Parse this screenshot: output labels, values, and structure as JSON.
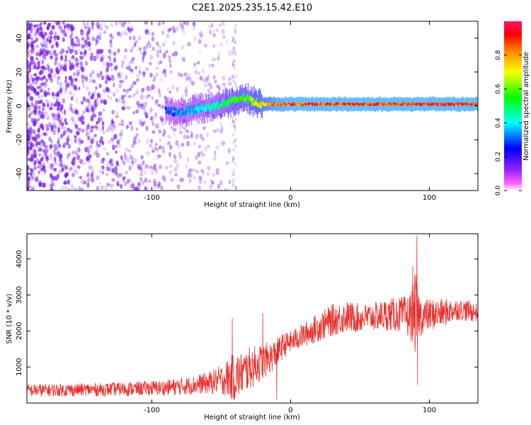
{
  "title": "C2E1.2025.235.15.42.E10",
  "colors": {
    "snr_line": "#e8312d",
    "spectro_low": "#7a1ee8",
    "colorbar": [
      "#ffffff",
      "#ff00ff",
      "#7700ff",
      "#0000ff",
      "#00ffff",
      "#00ff00",
      "#ffff00",
      "#ff7700",
      "#ff0000"
    ]
  },
  "chart_data": [
    {
      "type": "heatmap",
      "title": "C2E1.2025.235.15.42.E10",
      "xlabel": "Height of straight line (km)",
      "ylabel": "Frequency (Hz)",
      "xlim": [
        -190,
        135
      ],
      "ylim": [
        -50,
        50
      ],
      "xticks": [
        -100,
        0,
        100
      ],
      "yticks": [
        -40,
        -20,
        0,
        20,
        40
      ],
      "grid": false,
      "colorbar": {
        "label": "Normalized spectral amplitude",
        "range": [
          0,
          1
        ],
        "ticks": [
          0.0,
          0.2,
          0.4,
          0.6,
          0.8
        ],
        "tick_labels": [
          "0.0",
          "0.2",
          "0.4",
          "0.6",
          "0.8"
        ]
      },
      "ridge": {
        "x": [
          -90,
          -80,
          -70,
          -60,
          -50,
          -40,
          -35,
          -30,
          -25,
          -20,
          -10,
          0,
          20,
          40,
          60,
          80,
          100,
          120,
          135
        ],
        "freq": [
          -3,
          -4,
          -2,
          -1,
          1,
          3,
          5,
          4,
          2,
          1,
          1,
          1,
          1,
          1,
          1,
          1,
          1,
          1,
          1
        ],
        "amplitude": [
          0.3,
          0.35,
          0.4,
          0.45,
          0.5,
          0.6,
          0.62,
          0.6,
          0.7,
          0.8,
          0.9,
          0.95,
          0.95,
          0.95,
          0.95,
          0.95,
          0.95,
          0.95,
          0.95
        ]
      },
      "noise_region": {
        "x_range": [
          -190,
          -40
        ],
        "amplitude_range": [
          0.0,
          0.3
        ]
      }
    },
    {
      "type": "line",
      "xlabel": "Height of straight line (km)",
      "ylabel": "SNR (10 * v/v)",
      "xlim": [
        -190,
        135
      ],
      "ylim": [
        0,
        4700
      ],
      "xticks": [
        -100,
        0,
        100
      ],
      "yticks": [
        1000,
        2000,
        3000,
        4000
      ],
      "grid": false,
      "series": [
        {
          "x": [
            -190,
            -170,
            -150,
            -130,
            -110,
            -90,
            -75,
            -60,
            -50,
            -45,
            -40,
            -35,
            -30,
            -25,
            -20,
            -15,
            -10,
            -5,
            0,
            10,
            20,
            30,
            40,
            50,
            60,
            70,
            80,
            85,
            88,
            90,
            92,
            95,
            100,
            110,
            120,
            130,
            135
          ],
          "values": [
            350,
            360,
            370,
            380,
            400,
            430,
            480,
            550,
            650,
            700,
            720,
            820,
            950,
            1050,
            1150,
            1250,
            1400,
            1600,
            1700,
            1900,
            2100,
            2300,
            2400,
            2350,
            2400,
            2450,
            2450,
            2400,
            2450,
            2500,
            2450,
            2400,
            2450,
            2500,
            2600,
            2550,
            2500
          ],
          "spread": [
            180,
            180,
            180,
            190,
            200,
            220,
            250,
            300,
            400,
            550,
            700,
            600,
            600,
            550,
            500,
            450,
            400,
            350,
            300,
            350,
            400,
            450,
            450,
            400,
            400,
            450,
            500,
            600,
            800,
            1200,
            700,
            500,
            450,
            400,
            300,
            300,
            250
          ],
          "spikes": [
            {
              "x": 91,
              "value": 4650
            },
            {
              "x": 91.5,
              "value": 500
            },
            {
              "x": -42,
              "value": 2350
            },
            {
              "x": -20,
              "value": 2500
            },
            {
              "x": -10,
              "value": 100
            },
            {
              "x": 88,
              "value": 3800
            }
          ]
        }
      ]
    }
  ]
}
